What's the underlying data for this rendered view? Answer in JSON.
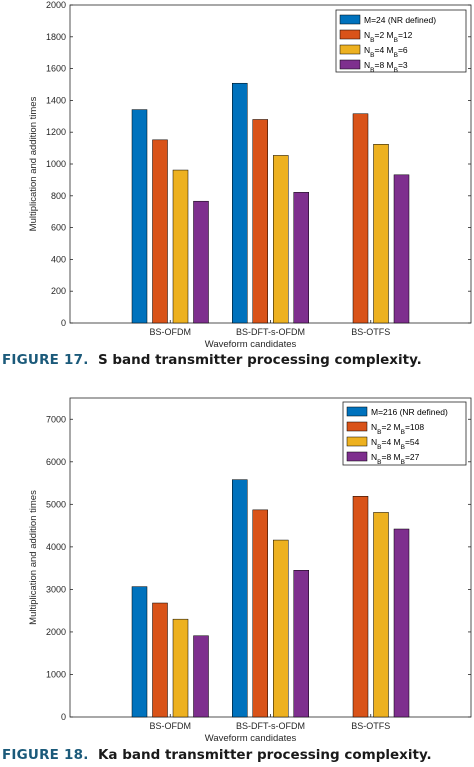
{
  "colors": {
    "series": [
      "#0072BD",
      "#D95319",
      "#EDB120",
      "#7E2F8E"
    ],
    "axis": "#262626",
    "caption_label": "#1b5a7a",
    "caption_text": "#1a1a1a"
  },
  "chart_data": [
    {
      "type": "bar",
      "categories": [
        "BS-OFDM",
        "BS-DFT-s-OFDM",
        "BS-OTFS"
      ],
      "series": [
        {
          "name": "M=24 (NR defined)",
          "name_parts": [
            [
              "M=24 (NR defined)",
              ""
            ]
          ],
          "values": [
            1342,
            1508,
            0
          ]
        },
        {
          "name": "NB=2 MB=12",
          "name_parts": [
            [
              "N",
              ""
            ],
            [
              "B",
              "sub"
            ],
            [
              "=2 M",
              ""
            ],
            [
              "B",
              "sub"
            ],
            [
              "=12",
              ""
            ]
          ],
          "values": [
            1152,
            1280,
            1316
          ]
        },
        {
          "name": "NB=4 MB=6",
          "name_parts": [
            [
              "N",
              ""
            ],
            [
              "B",
              "sub"
            ],
            [
              "=4 M",
              ""
            ],
            [
              "B",
              "sub"
            ],
            [
              "=6",
              ""
            ]
          ],
          "values": [
            962,
            1054,
            1124
          ]
        },
        {
          "name": "NB=8 MB=3",
          "name_parts": [
            [
              "N",
              ""
            ],
            [
              "B",
              "sub"
            ],
            [
              "=8 M",
              ""
            ],
            [
              "B",
              "sub"
            ],
            [
              "=3",
              ""
            ]
          ],
          "values": [
            766,
            822,
            932
          ]
        }
      ],
      "xlabel": "Waveform candidates",
      "ylabel": "Multiplication and addition times",
      "ylim": [
        0,
        2000
      ],
      "yticks": [
        0,
        200,
        400,
        600,
        800,
        1000,
        1200,
        1400,
        1600,
        1800,
        2000
      ],
      "grid": false,
      "legend": "top-right",
      "caption_label": "FIGURE 17.",
      "caption_text": "S band transmitter processing complexity."
    },
    {
      "type": "bar",
      "categories": [
        "BS-OFDM",
        "BS-DFT-s-OFDM",
        "BS-OTFS"
      ],
      "series": [
        {
          "name": "M=216 (NR defined)",
          "name_parts": [
            [
              "M=216 (NR defined)",
              ""
            ]
          ],
          "values": [
            3065,
            5580,
            0
          ]
        },
        {
          "name": "NB=2 MB=108",
          "name_parts": [
            [
              "N",
              ""
            ],
            [
              "B",
              "sub"
            ],
            [
              "=2 M",
              ""
            ],
            [
              "B",
              "sub"
            ],
            [
              "=108",
              ""
            ]
          ],
          "values": [
            2680,
            4870,
            5190
          ]
        },
        {
          "name": "NB=4 MB=54",
          "name_parts": [
            [
              "N",
              ""
            ],
            [
              "B",
              "sub"
            ],
            [
              "=4 M",
              ""
            ],
            [
              "B",
              "sub"
            ],
            [
              "=54",
              ""
            ]
          ],
          "values": [
            2300,
            4160,
            4810
          ]
        },
        {
          "name": "NB=8 MB=27",
          "name_parts": [
            [
              "N",
              ""
            ],
            [
              "B",
              "sub"
            ],
            [
              "=8 M",
              ""
            ],
            [
              "B",
              "sub"
            ],
            [
              "=27",
              ""
            ]
          ],
          "values": [
            1910,
            3450,
            4420
          ]
        }
      ],
      "xlabel": "Waveform candidates",
      "ylabel": "Multiplication and addition times",
      "ylim": [
        0,
        7500
      ],
      "yticks": [
        0,
        1000,
        2000,
        3000,
        4000,
        5000,
        6000,
        7000
      ],
      "grid": false,
      "legend": "top-right",
      "caption_label": "FIGURE 18.",
      "caption_text": "Ka band transmitter processing complexity."
    }
  ]
}
